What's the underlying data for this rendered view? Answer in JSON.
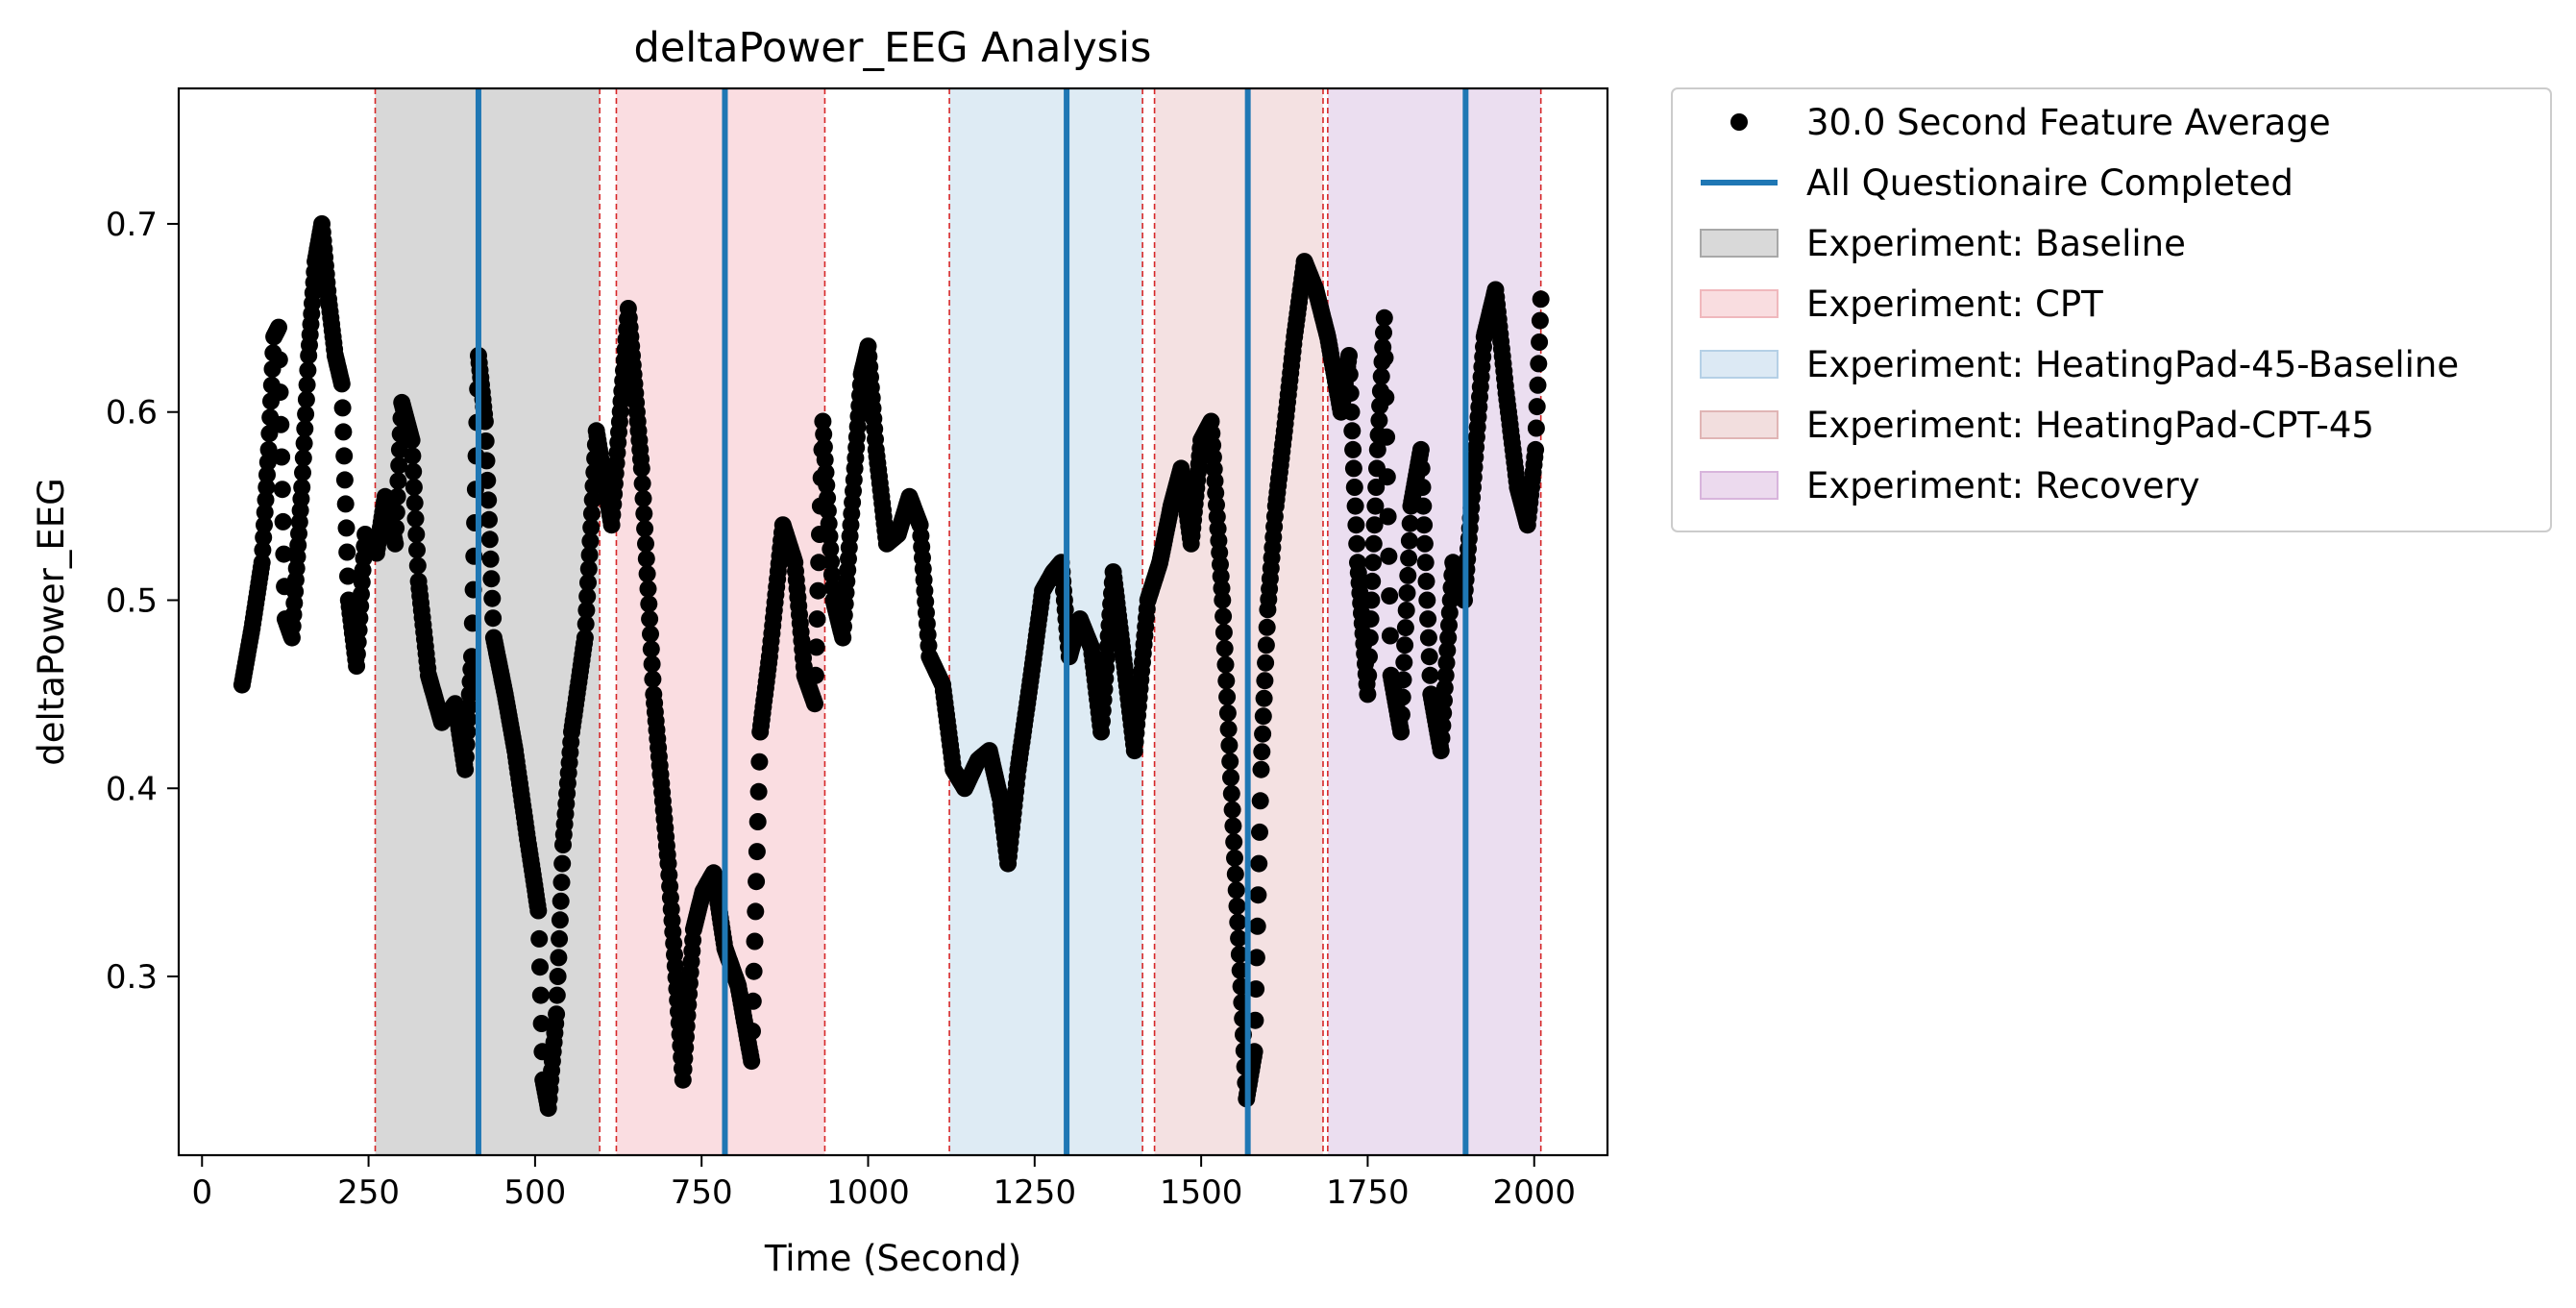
{
  "chart_data": {
    "type": "scatter",
    "title": "deltaPower_EEG Analysis",
    "xlabel": "Time (Second)",
    "ylabel": "deltaPower_EEG",
    "xlim": [
      -35,
      2110
    ],
    "ylim": [
      0.205,
      0.772
    ],
    "xticks": [
      0,
      250,
      500,
      750,
      1000,
      1250,
      1500,
      1750,
      2000
    ],
    "yticks": [
      0.3,
      0.4,
      0.5,
      0.6,
      0.7
    ],
    "ytick_labels": [
      "0.3",
      "0.4",
      "0.5",
      "0.6",
      "0.7"
    ],
    "grid": false,
    "legend_position": "outside-right-top",
    "series": [
      {
        "name": "30.0 Second Feature Average",
        "color": "#000000",
        "marker": "circle",
        "anchors": [
          [
            60,
            0.455
          ],
          [
            75,
            0.485
          ],
          [
            90,
            0.52
          ],
          [
            100,
            0.58
          ],
          [
            108,
            0.64
          ],
          [
            115,
            0.645
          ],
          [
            125,
            0.49
          ],
          [
            135,
            0.48
          ],
          [
            150,
            0.56
          ],
          [
            160,
            0.63
          ],
          [
            170,
            0.68
          ],
          [
            180,
            0.7
          ],
          [
            190,
            0.66
          ],
          [
            200,
            0.63
          ],
          [
            210,
            0.615
          ],
          [
            220,
            0.5
          ],
          [
            232,
            0.465
          ],
          [
            245,
            0.535
          ],
          [
            262,
            0.525
          ],
          [
            275,
            0.555
          ],
          [
            290,
            0.53
          ],
          [
            300,
            0.605
          ],
          [
            315,
            0.585
          ],
          [
            325,
            0.51
          ],
          [
            340,
            0.46
          ],
          [
            360,
            0.435
          ],
          [
            380,
            0.445
          ],
          [
            395,
            0.41
          ],
          [
            405,
            0.47
          ],
          [
            415,
            0.63
          ],
          [
            425,
            0.595
          ],
          [
            438,
            0.48
          ],
          [
            455,
            0.45
          ],
          [
            470,
            0.42
          ],
          [
            490,
            0.37
          ],
          [
            505,
            0.335
          ],
          [
            512,
            0.245
          ],
          [
            520,
            0.23
          ],
          [
            532,
            0.28
          ],
          [
            542,
            0.37
          ],
          [
            555,
            0.43
          ],
          [
            575,
            0.48
          ],
          [
            592,
            0.59
          ],
          [
            615,
            0.54
          ],
          [
            640,
            0.655
          ],
          [
            660,
            0.57
          ],
          [
            678,
            0.45
          ],
          [
            700,
            0.36
          ],
          [
            722,
            0.245
          ],
          [
            738,
            0.325
          ],
          [
            752,
            0.345
          ],
          [
            768,
            0.355
          ],
          [
            785,
            0.315
          ],
          [
            805,
            0.295
          ],
          [
            825,
            0.255
          ],
          [
            838,
            0.43
          ],
          [
            852,
            0.47
          ],
          [
            872,
            0.54
          ],
          [
            890,
            0.52
          ],
          [
            905,
            0.46
          ],
          [
            920,
            0.445
          ],
          [
            932,
            0.595
          ],
          [
            948,
            0.5
          ],
          [
            962,
            0.48
          ],
          [
            980,
            0.57
          ],
          [
            990,
            0.62
          ],
          [
            1000,
            0.635
          ],
          [
            1012,
            0.58
          ],
          [
            1028,
            0.53
          ],
          [
            1045,
            0.535
          ],
          [
            1062,
            0.555
          ],
          [
            1078,
            0.54
          ],
          [
            1092,
            0.47
          ],
          [
            1112,
            0.455
          ],
          [
            1128,
            0.41
          ],
          [
            1145,
            0.4
          ],
          [
            1165,
            0.415
          ],
          [
            1182,
            0.42
          ],
          [
            1198,
            0.395
          ],
          [
            1210,
            0.36
          ],
          [
            1225,
            0.41
          ],
          [
            1245,
            0.46
          ],
          [
            1262,
            0.505
          ],
          [
            1278,
            0.515
          ],
          [
            1290,
            0.52
          ],
          [
            1302,
            0.47
          ],
          [
            1318,
            0.49
          ],
          [
            1335,
            0.475
          ],
          [
            1350,
            0.43
          ],
          [
            1368,
            0.515
          ],
          [
            1385,
            0.465
          ],
          [
            1400,
            0.42
          ],
          [
            1420,
            0.5
          ],
          [
            1438,
            0.52
          ],
          [
            1455,
            0.55
          ],
          [
            1470,
            0.57
          ],
          [
            1485,
            0.53
          ],
          [
            1500,
            0.585
          ],
          [
            1515,
            0.595
          ],
          [
            1532,
            0.5
          ],
          [
            1548,
            0.38
          ],
          [
            1568,
            0.235
          ],
          [
            1580,
            0.26
          ],
          [
            1590,
            0.41
          ],
          [
            1600,
            0.495
          ],
          [
            1612,
            0.55
          ],
          [
            1625,
            0.59
          ],
          [
            1640,
            0.64
          ],
          [
            1655,
            0.68
          ],
          [
            1672,
            0.665
          ],
          [
            1690,
            0.64
          ],
          [
            1710,
            0.6
          ],
          [
            1722,
            0.63
          ],
          [
            1735,
            0.52
          ],
          [
            1750,
            0.45
          ],
          [
            1765,
            0.58
          ],
          [
            1775,
            0.65
          ],
          [
            1785,
            0.46
          ],
          [
            1800,
            0.43
          ],
          [
            1815,
            0.55
          ],
          [
            1830,
            0.58
          ],
          [
            1845,
            0.45
          ],
          [
            1860,
            0.42
          ],
          [
            1878,
            0.52
          ],
          [
            1895,
            0.5
          ],
          [
            1908,
            0.56
          ],
          [
            1925,
            0.64
          ],
          [
            1942,
            0.665
          ],
          [
            1958,
            0.61
          ],
          [
            1975,
            0.56
          ],
          [
            1990,
            0.54
          ],
          [
            2002,
            0.58
          ],
          [
            2010,
            0.66
          ]
        ]
      }
    ],
    "vertical_lines": {
      "name": "All Questionaire Completed",
      "color": "#1f77b4",
      "x": [
        415,
        785,
        1298,
        1570,
        1897
      ]
    },
    "phase_boundaries": {
      "color": "#d62728",
      "x": [
        260,
        597,
        622,
        935,
        1122,
        1412,
        1430,
        1683,
        1690,
        2010
      ]
    },
    "spans": [
      {
        "name": "Experiment: Baseline",
        "color": "#7f7f7f",
        "alpha": 0.3,
        "x0": 260,
        "x1": 597
      },
      {
        "name": "Experiment: CPT",
        "color": "#e377c2",
        "alpha": 0.0,
        "x0": 0,
        "x1": 0,
        "legend_color": "#f08f9a"
      },
      {
        "name": "Experiment: HeatingPad-45-Baseline",
        "color": "#1f77b4",
        "alpha": 0.15,
        "x0": 1122,
        "x1": 1412
      },
      {
        "name": "Experiment: HeatingPad-CPT-45",
        "color": "#c0585e",
        "alpha": 0.18,
        "x0": 1430,
        "x1": 1683
      },
      {
        "name": "Experiment: Recovery",
        "color": "#9b59b6",
        "alpha": 0.2,
        "x0": 1690,
        "x1": 2010
      }
    ],
    "cpt_span": {
      "color": "#f08f9a",
      "alpha": 0.3,
      "x0": 622,
      "x1": 935
    },
    "legend": [
      {
        "label": "30.0 Second Feature Average",
        "kind": "marker",
        "color": "#000000"
      },
      {
        "label": "All Questionaire Completed",
        "kind": "line",
        "color": "#1f77b4"
      },
      {
        "label": "Experiment: Baseline",
        "kind": "patch",
        "color": "#d9d9d9",
        "edge": "#a8a8a8"
      },
      {
        "label": "Experiment: CPT",
        "kind": "patch",
        "color": "#f9dde0",
        "edge": "#f0b8bd"
      },
      {
        "label": "Experiment: HeatingPad-45-Baseline",
        "kind": "patch",
        "color": "#dce9f4",
        "edge": "#b5d0e6"
      },
      {
        "label": "Experiment: HeatingPad-CPT-45",
        "kind": "patch",
        "color": "#f2dede",
        "edge": "#e0b5b5"
      },
      {
        "label": "Experiment: Recovery",
        "kind": "patch",
        "color": "#ecdaee",
        "edge": "#d8b5dc"
      }
    ]
  }
}
